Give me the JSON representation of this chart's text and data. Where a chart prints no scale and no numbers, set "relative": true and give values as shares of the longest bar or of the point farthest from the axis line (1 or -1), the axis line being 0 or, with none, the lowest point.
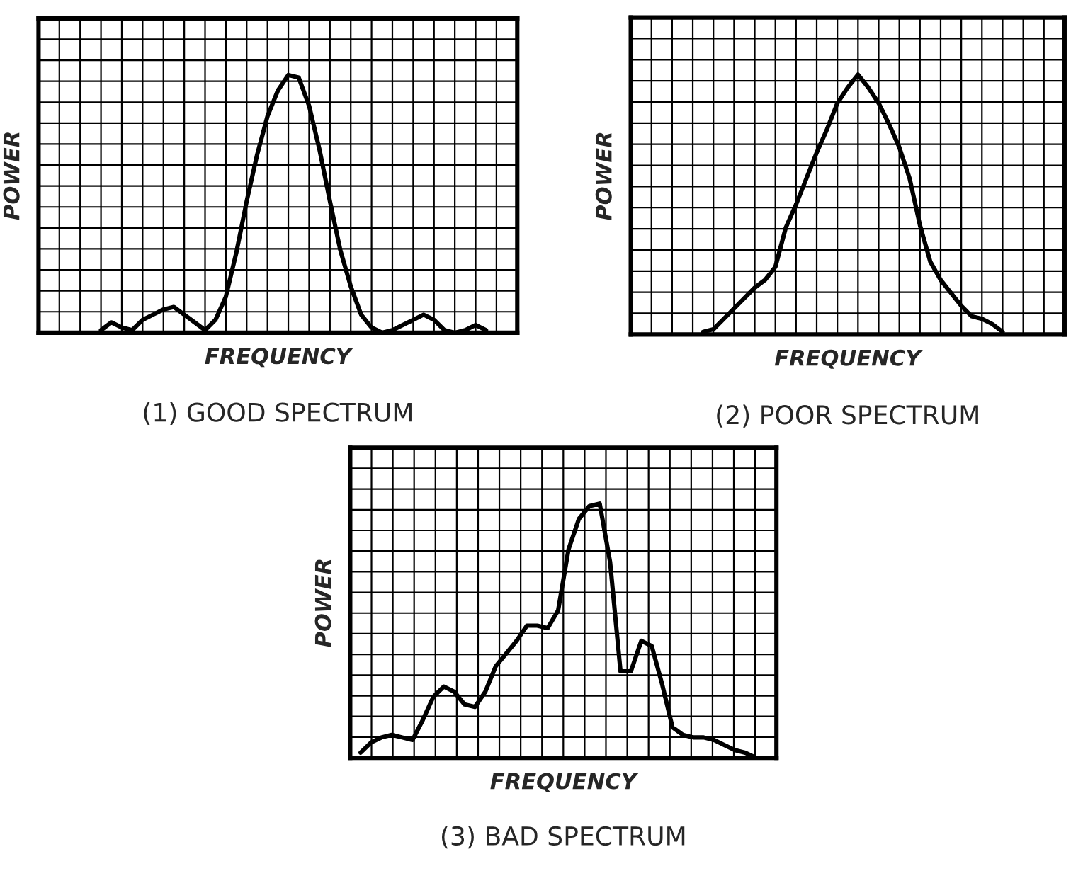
{
  "chart_data": [
    {
      "type": "line",
      "title": "(1) GOOD SPECTRUM",
      "xlabel": "FREQUENCY",
      "ylabel": "POWER",
      "relative": true,
      "grid": true,
      "categories": [
        null,
        null,
        null,
        null,
        null,
        null,
        null,
        null,
        null,
        null,
        null,
        null,
        null,
        null,
        null,
        null,
        null,
        null,
        null,
        null,
        null,
        null,
        null,
        null,
        null,
        null,
        null,
        null,
        null,
        null,
        null,
        null,
        null,
        null,
        null,
        null,
        null,
        null,
        null,
        null,
        null,
        null,
        null,
        null,
        null,
        null,
        null
      ],
      "series": [
        {
          "color": "#000000",
          "values": [
            null,
            null,
            null,
            null,
            null,
            null,
            0.01,
            0.04,
            0.02,
            0.01,
            0.05,
            0.07,
            0.09,
            0.1,
            0.07,
            0.04,
            0.01,
            0.05,
            0.14,
            0.31,
            0.51,
            0.69,
            0.84,
            0.94,
            1.0,
            0.99,
            0.88,
            0.71,
            0.51,
            0.32,
            0.18,
            0.07,
            0.02,
            0.0,
            0.01,
            0.03,
            0.05,
            0.07,
            0.05,
            0.01,
            0.0,
            0.01,
            0.03,
            0.01,
            null,
            null,
            null
          ]
        }
      ]
    },
    {
      "type": "line",
      "title": "(2) POOR SPECTRUM",
      "xlabel": "FREQUENCY",
      "ylabel": "POWER",
      "relative": true,
      "grid": true,
      "categories": [
        null,
        null,
        null,
        null,
        null,
        null,
        null,
        null,
        null,
        null,
        null,
        null,
        null,
        null,
        null,
        null,
        null,
        null,
        null,
        null,
        null,
        null,
        null,
        null,
        null,
        null,
        null,
        null,
        null,
        null,
        null,
        null,
        null,
        null,
        null,
        null,
        null,
        null,
        null,
        null,
        null,
        null,
        null
      ],
      "series": [
        {
          "color": "#000000",
          "values": [
            null,
            null,
            null,
            null,
            null,
            null,
            null,
            0.01,
            0.02,
            0.06,
            0.1,
            0.14,
            0.18,
            0.21,
            0.26,
            0.41,
            0.5,
            0.6,
            0.7,
            0.79,
            0.89,
            0.95,
            1.0,
            0.95,
            0.89,
            0.81,
            0.72,
            0.6,
            0.42,
            0.28,
            0.21,
            0.16,
            0.11,
            0.07,
            0.06,
            0.04,
            0.01,
            null,
            null,
            null,
            null,
            null,
            null
          ]
        }
      ]
    },
    {
      "type": "line",
      "title": "(3) BAD SPECTRUM",
      "xlabel": "FREQUENCY",
      "ylabel": "POWER",
      "relative": true,
      "grid": true,
      "categories": [
        null,
        null,
        null,
        null,
        null,
        null,
        null,
        null,
        null,
        null,
        null,
        null,
        null,
        null,
        null,
        null,
        null,
        null,
        null,
        null,
        null,
        null,
        null,
        null,
        null,
        null,
        null,
        null,
        null,
        null,
        null,
        null,
        null,
        null,
        null,
        null,
        null,
        null,
        null,
        null,
        null,
        null
      ],
      "series": [
        {
          "color": "#000000",
          "values": [
            null,
            0.02,
            0.06,
            0.08,
            0.09,
            0.08,
            0.07,
            0.15,
            0.24,
            0.28,
            0.26,
            0.21,
            0.2,
            0.26,
            0.36,
            0.41,
            0.46,
            0.52,
            0.52,
            0.51,
            0.58,
            0.82,
            0.94,
            0.99,
            1.0,
            0.77,
            0.34,
            0.34,
            0.46,
            0.44,
            0.29,
            0.12,
            0.09,
            0.08,
            0.08,
            0.07,
            0.05,
            0.03,
            0.02,
            0.0,
            null,
            null
          ]
        }
      ]
    }
  ]
}
